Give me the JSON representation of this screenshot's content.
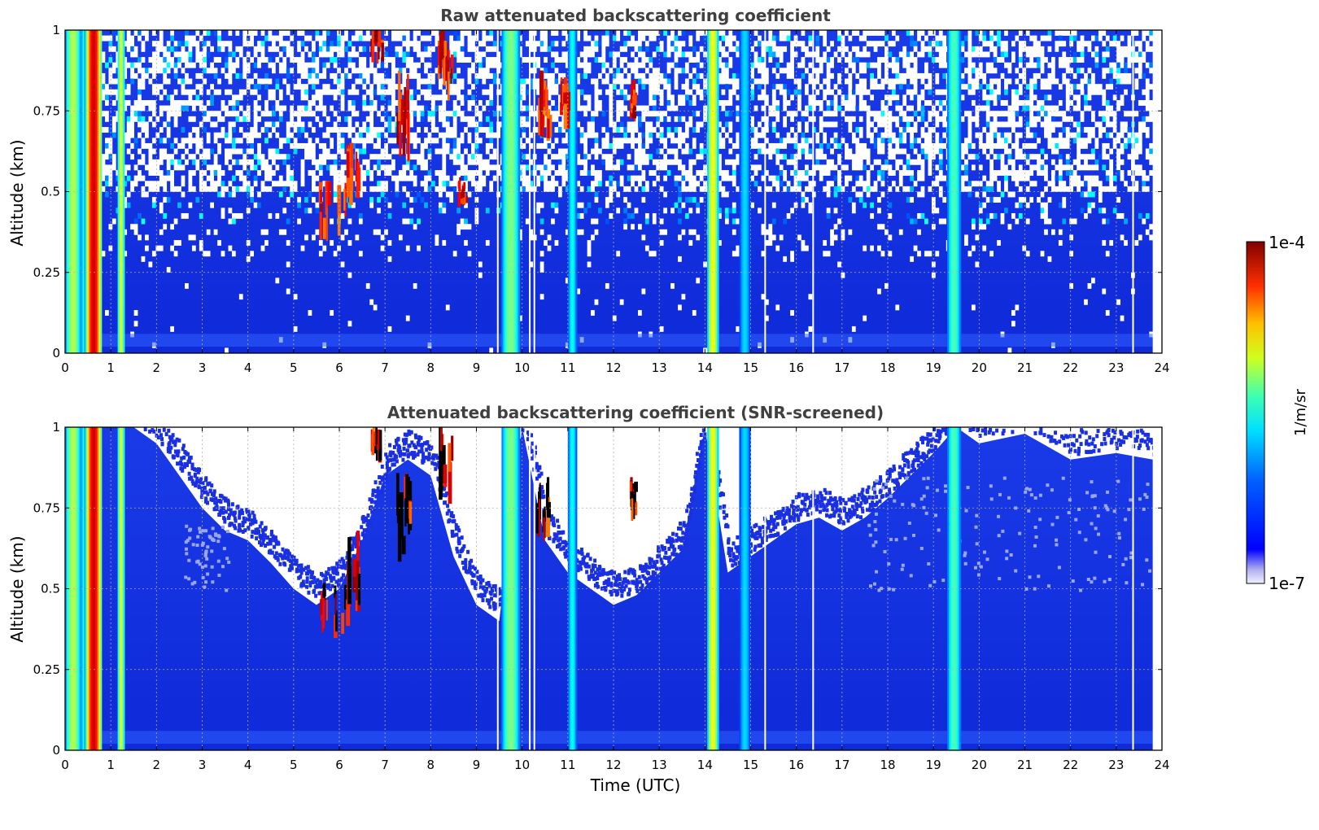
{
  "chart_data": [
    {
      "type": "heatmap",
      "title": "Raw attenuated backscattering coefficient",
      "xlabel": "",
      "ylabel": "Altitude (km)",
      "xlim": [
        0,
        24
      ],
      "ylim": [
        0,
        1
      ],
      "x_ticks": [
        "0",
        "1",
        "2",
        "3",
        "4",
        "5",
        "6",
        "7",
        "8",
        "9",
        "10",
        "11",
        "12",
        "13",
        "14",
        "15",
        "16",
        "17",
        "18",
        "19",
        "20",
        "21",
        "22",
        "23",
        "24"
      ],
      "y_ticks": [
        "0",
        "0.25",
        "0.5",
        "0.75",
        "1"
      ],
      "grid": true,
      "data_end_x": 23.8,
      "screened": false,
      "vertical_bands": [
        {
          "x0": 0.0,
          "x1": 0.35,
          "intensity": 0.55
        },
        {
          "x0": 0.35,
          "x1": 0.45,
          "intensity": 0.4
        },
        {
          "x0": 0.45,
          "x1": 0.8,
          "intensity": 0.92
        },
        {
          "x0": 1.15,
          "x1": 1.3,
          "intensity": 0.6
        },
        {
          "x0": 9.55,
          "x1": 9.95,
          "intensity": 0.5
        },
        {
          "x0": 11.0,
          "x1": 11.2,
          "intensity": 0.38
        },
        {
          "x0": 14.05,
          "x1": 14.3,
          "intensity": 0.62
        },
        {
          "x0": 14.75,
          "x1": 15.0,
          "intensity": 0.34
        },
        {
          "x0": 19.3,
          "x1": 19.6,
          "intensity": 0.45
        }
      ],
      "gaps_x": [
        9.45,
        10.15,
        10.25,
        15.3,
        16.35,
        23.35
      ],
      "clouds": [
        {
          "x": 5.85,
          "y": 0.44,
          "w": 0.6,
          "h": 0.12
        },
        {
          "x": 6.3,
          "y": 0.55,
          "w": 0.3,
          "h": 0.15
        },
        {
          "x": 6.8,
          "y": 0.95,
          "w": 0.25,
          "h": 0.08
        },
        {
          "x": 7.4,
          "y": 0.72,
          "w": 0.35,
          "h": 0.18
        },
        {
          "x": 8.3,
          "y": 0.9,
          "w": 0.3,
          "h": 0.15
        },
        {
          "x": 8.65,
          "y": 0.5,
          "w": 0.15,
          "h": 0.05
        },
        {
          "x": 10.45,
          "y": 0.75,
          "w": 0.3,
          "h": 0.14
        },
        {
          "x": 10.9,
          "y": 0.78,
          "w": 0.15,
          "h": 0.1
        },
        {
          "x": 12.4,
          "y": 0.78,
          "w": 0.1,
          "h": 0.08
        }
      ]
    },
    {
      "type": "heatmap",
      "title": "Attenuated backscattering coefficient (SNR-screened)",
      "xlabel": "Time (UTC)",
      "ylabel": "Altitude (km)",
      "xlim": [
        0,
        24
      ],
      "ylim": [
        0,
        1
      ],
      "x_ticks": [
        "0",
        "1",
        "2",
        "3",
        "4",
        "5",
        "6",
        "7",
        "8",
        "9",
        "10",
        "11",
        "12",
        "13",
        "14",
        "15",
        "16",
        "17",
        "18",
        "19",
        "20",
        "21",
        "22",
        "23",
        "24"
      ],
      "y_ticks": [
        "0",
        "0.25",
        "0.5",
        "0.75",
        "1"
      ],
      "grid": true,
      "data_end_x": 23.8,
      "screened": true,
      "screen_top_km": [
        [
          0,
          1.0
        ],
        [
          1.5,
          1.0
        ],
        [
          2.0,
          0.95
        ],
        [
          2.5,
          0.85
        ],
        [
          3.0,
          0.75
        ],
        [
          3.5,
          0.68
        ],
        [
          4.0,
          0.65
        ],
        [
          4.5,
          0.58
        ],
        [
          5.0,
          0.5
        ],
        [
          5.5,
          0.45
        ],
        [
          6.0,
          0.5
        ],
        [
          6.5,
          0.65
        ],
        [
          7.0,
          0.85
        ],
        [
          7.5,
          0.9
        ],
        [
          8.0,
          0.85
        ],
        [
          8.5,
          0.6
        ],
        [
          9.0,
          0.45
        ],
        [
          9.5,
          0.4
        ],
        [
          10.0,
          1.0
        ],
        [
          10.5,
          0.65
        ],
        [
          11.0,
          0.55
        ],
        [
          11.5,
          0.5
        ],
        [
          12.0,
          0.45
        ],
        [
          12.5,
          0.48
        ],
        [
          13.0,
          0.55
        ],
        [
          13.5,
          0.62
        ],
        [
          14.0,
          1.0
        ],
        [
          14.5,
          0.55
        ],
        [
          15.0,
          0.6
        ],
        [
          15.5,
          0.65
        ],
        [
          16.0,
          0.7
        ],
        [
          16.5,
          0.72
        ],
        [
          17.0,
          0.68
        ],
        [
          17.5,
          0.72
        ],
        [
          18.0,
          0.78
        ],
        [
          18.5,
          0.85
        ],
        [
          19.0,
          0.92
        ],
        [
          19.5,
          1.0
        ],
        [
          20.0,
          0.95
        ],
        [
          21.0,
          0.98
        ],
        [
          22.0,
          0.9
        ],
        [
          23.0,
          0.92
        ],
        [
          23.8,
          0.9
        ]
      ],
      "vertical_bands": [
        {
          "x0": 0.0,
          "x1": 0.35,
          "intensity": 0.55
        },
        {
          "x0": 0.35,
          "x1": 0.45,
          "intensity": 0.4
        },
        {
          "x0": 0.45,
          "x1": 0.8,
          "intensity": 0.92
        },
        {
          "x0": 1.15,
          "x1": 1.3,
          "intensity": 0.6
        },
        {
          "x0": 9.55,
          "x1": 9.95,
          "intensity": 0.5
        },
        {
          "x0": 11.0,
          "x1": 11.2,
          "intensity": 0.38
        },
        {
          "x0": 14.05,
          "x1": 14.3,
          "intensity": 0.62
        },
        {
          "x0": 14.75,
          "x1": 15.0,
          "intensity": 0.34
        },
        {
          "x0": 19.3,
          "x1": 19.6,
          "intensity": 0.45
        }
      ],
      "gaps_x": [
        9.45,
        10.15,
        10.25,
        15.3,
        16.35,
        23.35
      ],
      "clouds": [
        {
          "x": 5.85,
          "y": 0.44,
          "w": 0.6,
          "h": 0.12
        },
        {
          "x": 6.3,
          "y": 0.55,
          "w": 0.3,
          "h": 0.15
        },
        {
          "x": 6.8,
          "y": 0.95,
          "w": 0.25,
          "h": 0.08
        },
        {
          "x": 7.4,
          "y": 0.72,
          "w": 0.35,
          "h": 0.18
        },
        {
          "x": 8.3,
          "y": 0.9,
          "w": 0.3,
          "h": 0.15
        },
        {
          "x": 10.45,
          "y": 0.75,
          "w": 0.3,
          "h": 0.14
        },
        {
          "x": 12.4,
          "y": 0.78,
          "w": 0.1,
          "h": 0.08
        }
      ]
    }
  ],
  "colorbar": {
    "label": "1/m/sr",
    "max_label": "1e-4",
    "min_label": "1e-7",
    "colormap": "jet",
    "scale": "log"
  },
  "colors": {
    "background_field": "#1530e0",
    "axis": "#000000",
    "grid": "#b0b0b0",
    "title": "#404040"
  }
}
